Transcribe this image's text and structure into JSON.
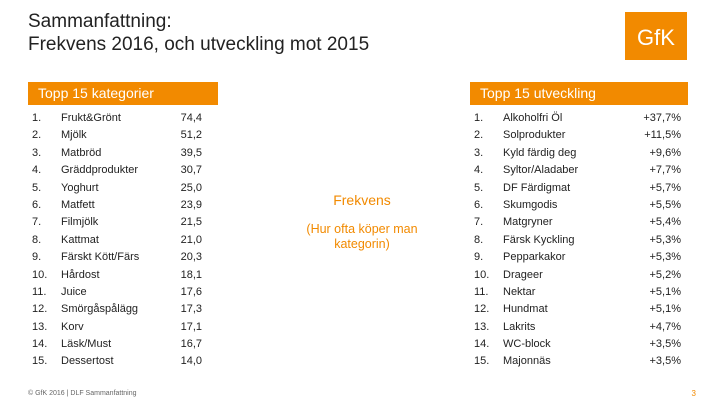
{
  "title": {
    "line1": "Sammanfattning:",
    "line2": "Frekvens 2016, och utveckling mot 2015"
  },
  "logo": {
    "text": "GfK",
    "color": "#f28a00"
  },
  "left_panel": {
    "header": "Topp 15 kategorier",
    "items": [
      {
        "num": "1.",
        "name": "Frukt&Grönt",
        "value": "74,4"
      },
      {
        "num": "2.",
        "name": "Mjölk",
        "value": "51,2"
      },
      {
        "num": "3.",
        "name": "Matbröd",
        "value": "39,5"
      },
      {
        "num": "4.",
        "name": "Gräddprodukter",
        "value": "30,7"
      },
      {
        "num": "5.",
        "name": "Yoghurt",
        "value": "25,0"
      },
      {
        "num": "6.",
        "name": "Matfett",
        "value": "23,9"
      },
      {
        "num": "7.",
        "name": "Filmjölk",
        "value": "21,5"
      },
      {
        "num": "8.",
        "name": "Kattmat",
        "value": "21,0"
      },
      {
        "num": "9.",
        "name": "Färskt Kött/Färs",
        "value": "20,3"
      },
      {
        "num": "10.",
        "name": "Hårdost",
        "value": "18,1"
      },
      {
        "num": "11.",
        "name": "Juice",
        "value": "17,6"
      },
      {
        "num": "12.",
        "name": "Smörgåspålägg",
        "value": "17,3"
      },
      {
        "num": "13.",
        "name": "Korv",
        "value": "17,1"
      },
      {
        "num": "14.",
        "name": "Läsk/Must",
        "value": "16,7"
      },
      {
        "num": "15.",
        "name": "Dessertost",
        "value": "14,0"
      }
    ]
  },
  "center": {
    "title": "Frekvens",
    "subtitle": "(Hur ofta köper man kategorin)"
  },
  "right_panel": {
    "header": "Topp 15 utveckling",
    "items": [
      {
        "num": "1.",
        "name": "Alkoholfri Öl",
        "value": "+37,7%"
      },
      {
        "num": "2.",
        "name": "Solprodukter",
        "value": "+11,5%"
      },
      {
        "num": "3.",
        "name": "Kyld färdig deg",
        "value": "+9,6%"
      },
      {
        "num": "4.",
        "name": "Syltor/Aladaber",
        "value": "+7,7%"
      },
      {
        "num": "5.",
        "name": "DF Färdigmat",
        "value": "+5,7%"
      },
      {
        "num": "6.",
        "name": "Skumgodis",
        "value": "+5,5%"
      },
      {
        "num": "7.",
        "name": "Matgryner",
        "value": "+5,4%"
      },
      {
        "num": "8.",
        "name": "Färsk Kyckling",
        "value": "+5,3%"
      },
      {
        "num": "9.",
        "name": "Pepparkakor",
        "value": "+5,3%"
      },
      {
        "num": "10.",
        "name": "Drageer",
        "value": "+5,2%"
      },
      {
        "num": "11.",
        "name": "Nektar",
        "value": "+5,1%"
      },
      {
        "num": "12.",
        "name": "Hundmat",
        "value": "+5,1%"
      },
      {
        "num": "13.",
        "name": "Lakrits",
        "value": "+4,7%"
      },
      {
        "num": "14.",
        "name": "WC-block",
        "value": "+3,5%"
      },
      {
        "num": "15.",
        "name": "Majonnäs",
        "value": "+3,5%"
      }
    ]
  },
  "footer": "© GfK 2016 | DLF Sammanfattning",
  "page_number": "3",
  "accent_color": "#f28a00"
}
